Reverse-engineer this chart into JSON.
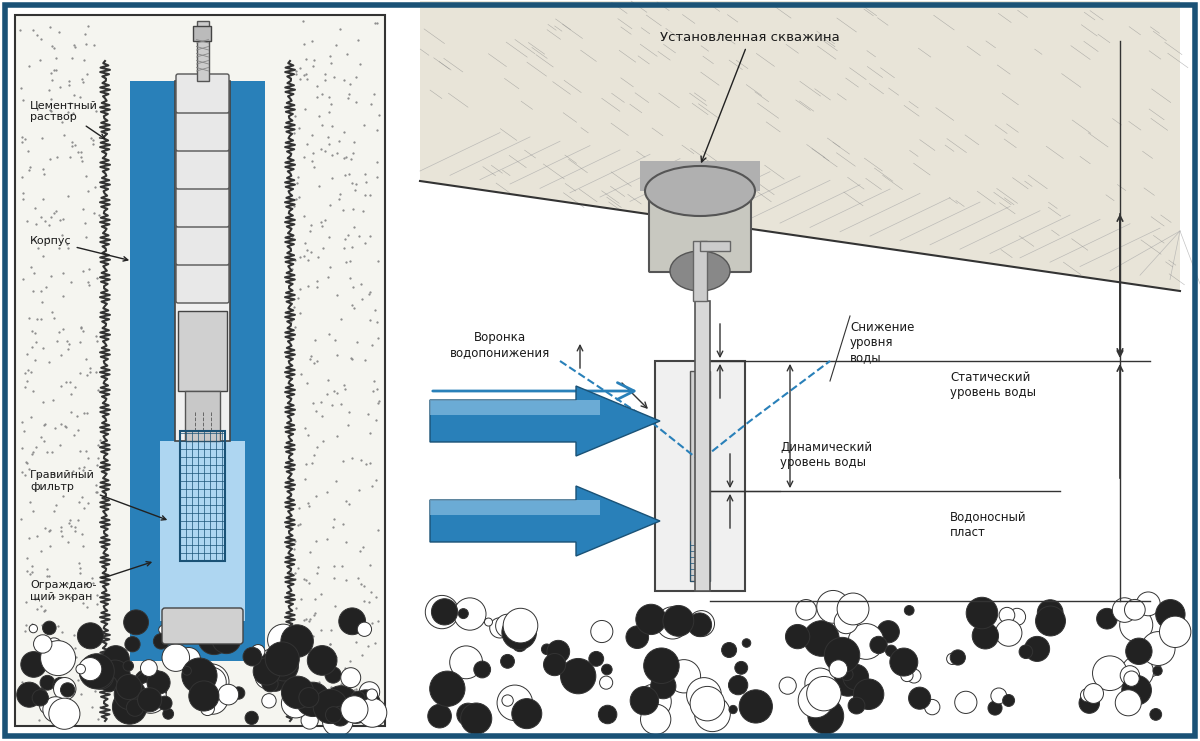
{
  "bg_color": "#ffffff",
  "border_color": "#1a5276",
  "border_width": 4,
  "title_installed": "Установленная скважина",
  "label_cement": "Цементный\nраствор",
  "label_casing": "Корпус",
  "label_gravel": "Гравийный\nфильтр",
  "label_screen": "Ограждаю-\nщий экран",
  "label_funnel": "Воронка\nводопонижения",
  "label_depression": "Снижение\nуровня\nводы",
  "label_static": "Статический\nуровень воды",
  "label_dynamic": "Динамический\nуровень воды",
  "label_aquifer": "Водоносный\nпласт",
  "blue_color": "#2980b9",
  "light_blue": "#aed6f1",
  "dark_blue": "#1a5276",
  "arrow_blue": "#2471a3",
  "gray_color": "#808080",
  "light_gray": "#d5d8dc",
  "dark_gray": "#2c3e50",
  "soil_color": "#d4c5a9",
  "rock_color": "#bdc3c7",
  "text_color": "#1a1a1a"
}
